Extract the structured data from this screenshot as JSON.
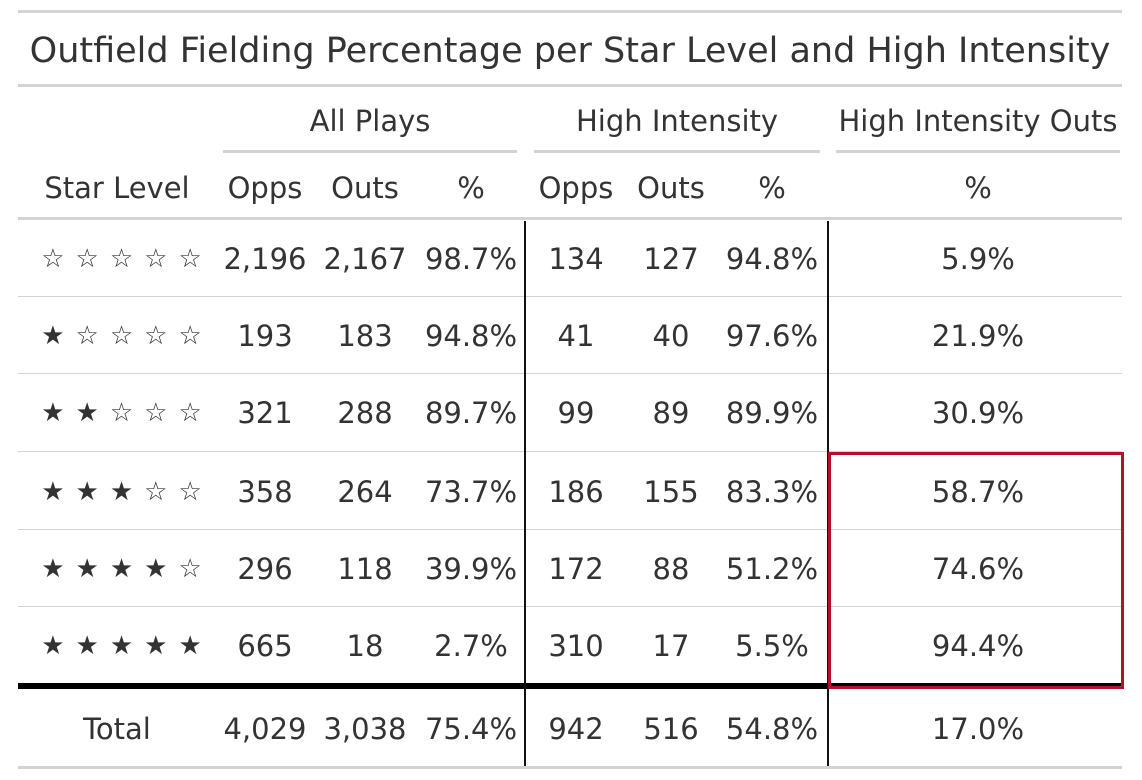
{
  "title": "Outfield Fielding Percentage per Star Level and High Intensity",
  "spanners": {
    "all_plays": "All Plays",
    "high_intensity": "High Intensity",
    "high_intensity_outs": "High Intensity Outs"
  },
  "columns": {
    "star_level": "Star Level",
    "opps": "Opps",
    "outs": "Outs",
    "pct": "%"
  },
  "rows": [
    {
      "stars": "☆☆☆☆☆",
      "all_opps": "2,196",
      "all_outs": "2,167",
      "all_pct": "98.7%",
      "hi_opps": "134",
      "hi_outs": "127",
      "hi_pct": "94.8%",
      "hio_pct": "5.9%"
    },
    {
      "stars": "★☆☆☆☆",
      "all_opps": "193",
      "all_outs": "183",
      "all_pct": "94.8%",
      "hi_opps": "41",
      "hi_outs": "40",
      "hi_pct": "97.6%",
      "hio_pct": "21.9%"
    },
    {
      "stars": "★★☆☆☆",
      "all_opps": "321",
      "all_outs": "288",
      "all_pct": "89.7%",
      "hi_opps": "99",
      "hi_outs": "89",
      "hi_pct": "89.9%",
      "hio_pct": "30.9%"
    },
    {
      "stars": "★★★☆☆",
      "all_opps": "358",
      "all_outs": "264",
      "all_pct": "73.7%",
      "hi_opps": "186",
      "hi_outs": "155",
      "hi_pct": "83.3%",
      "hio_pct": "58.7%"
    },
    {
      "stars": "★★★★☆",
      "all_opps": "296",
      "all_outs": "118",
      "all_pct": "39.9%",
      "hi_opps": "172",
      "hi_outs": "88",
      "hi_pct": "51.2%",
      "hio_pct": "74.6%"
    },
    {
      "stars": "★★★★★",
      "all_opps": "665",
      "all_outs": "18",
      "all_pct": "2.7%",
      "hi_opps": "310",
      "hi_outs": "17",
      "hi_pct": "5.5%",
      "hio_pct": "94.4%"
    }
  ],
  "total": {
    "label": "Total",
    "all_opps": "4,029",
    "all_outs": "3,038",
    "all_pct": "75.4%",
    "hi_opps": "942",
    "hi_outs": "516",
    "hi_pct": "54.8%",
    "hio_pct": "17.0%"
  },
  "colors": {
    "text": "#333333",
    "rule": "#d3d3d3",
    "divider": "#111111",
    "highlight_border": "#b1122a"
  }
}
